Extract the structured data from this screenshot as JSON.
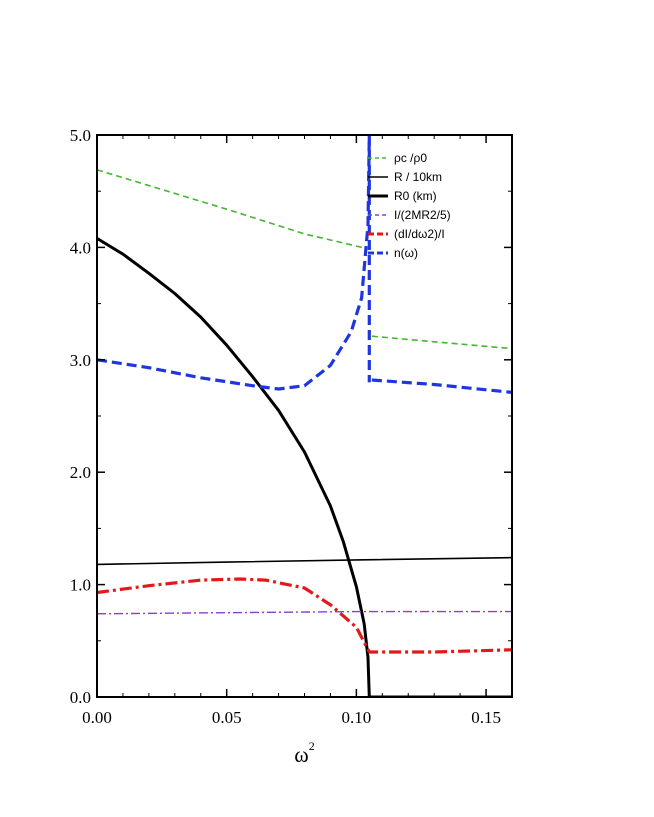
{
  "chart_data": {
    "type": "line",
    "xlabel": "ω",
    "xlabel_sup": "2",
    "xlim": [
      0.0,
      0.16
    ],
    "ylim": [
      0.0,
      5.0
    ],
    "xticks": [
      "0.00",
      "0.05",
      "0.10",
      "0.15"
    ],
    "yticks": [
      "0.0",
      "1.0",
      "2.0",
      "3.0",
      "4.0",
      "5.0"
    ],
    "legend_position": "top-right",
    "grid": false,
    "series": [
      {
        "name": "ρc /ρ0",
        "color": "#46b535",
        "style": "dashed",
        "width": 1.6,
        "segments": [
          [
            [
              0.0,
              4.69
            ],
            [
              0.05,
              4.34
            ],
            [
              0.08,
              4.12
            ],
            [
              0.104,
              3.99
            ]
          ],
          [
            [
              0.106,
              3.21
            ],
            [
              0.13,
              3.16
            ],
            [
              0.16,
              3.1
            ]
          ]
        ]
      },
      {
        "name": "R / 10km",
        "color": "#000000",
        "style": "solid",
        "width": 1.6,
        "segments": [
          [
            [
              0.0,
              1.18
            ],
            [
              0.05,
              1.2
            ],
            [
              0.1,
              1.22
            ],
            [
              0.16,
              1.24
            ]
          ]
        ]
      },
      {
        "name": "R0 (km)",
        "color": "#000000",
        "style": "solid",
        "width": 3,
        "segments": [
          [
            [
              0.0,
              4.08
            ],
            [
              0.01,
              3.94
            ],
            [
              0.02,
              3.77
            ],
            [
              0.03,
              3.59
            ],
            [
              0.04,
              3.38
            ],
            [
              0.05,
              3.13
            ],
            [
              0.06,
              2.85
            ],
            [
              0.07,
              2.55
            ],
            [
              0.08,
              2.18
            ],
            [
              0.09,
              1.7
            ],
            [
              0.095,
              1.38
            ],
            [
              0.1,
              0.98
            ],
            [
              0.103,
              0.65
            ],
            [
              0.1045,
              0.35
            ],
            [
              0.105,
              0.0
            ],
            [
              0.16,
              0.0
            ]
          ]
        ]
      },
      {
        "name": "I/(2MR2/5)",
        "color": "#8a3fcf",
        "style": "dashdot",
        "width": 1.4,
        "segments": [
          [
            [
              0.0,
              0.74
            ],
            [
              0.05,
              0.75
            ],
            [
              0.1,
              0.76
            ],
            [
              0.16,
              0.76
            ]
          ]
        ]
      },
      {
        "name": "(dI/dω2)/I",
        "color": "#e01a1a",
        "style": "dashdot-thick",
        "width": 3.2,
        "segments": [
          [
            [
              0.0,
              0.93
            ],
            [
              0.02,
              0.99
            ],
            [
              0.04,
              1.04
            ],
            [
              0.055,
              1.05
            ],
            [
              0.065,
              1.04
            ],
            [
              0.08,
              0.97
            ],
            [
              0.09,
              0.82
            ],
            [
              0.1,
              0.62
            ],
            [
              0.105,
              0.4
            ],
            [
              0.13,
              0.4
            ],
            [
              0.16,
              0.42
            ]
          ]
        ]
      },
      {
        "name": "n(ω)",
        "color": "#1f35e0",
        "style": "dashed-thick",
        "width": 3.2,
        "segments": [
          [
            [
              0.0,
              3.0
            ],
            [
              0.02,
              2.93
            ],
            [
              0.04,
              2.84
            ],
            [
              0.06,
              2.77
            ],
            [
              0.07,
              2.74
            ],
            [
              0.08,
              2.77
            ],
            [
              0.09,
              2.95
            ],
            [
              0.098,
              3.25
            ],
            [
              0.102,
              3.55
            ],
            [
              0.1045,
              4.2
            ],
            [
              0.105,
              5.0
            ]
          ],
          [
            [
              0.105,
              5.0
            ],
            [
              0.105,
              2.8
            ]
          ],
          [
            [
              0.106,
              2.82
            ],
            [
              0.13,
              2.78
            ],
            [
              0.16,
              2.71
            ]
          ]
        ]
      }
    ]
  }
}
